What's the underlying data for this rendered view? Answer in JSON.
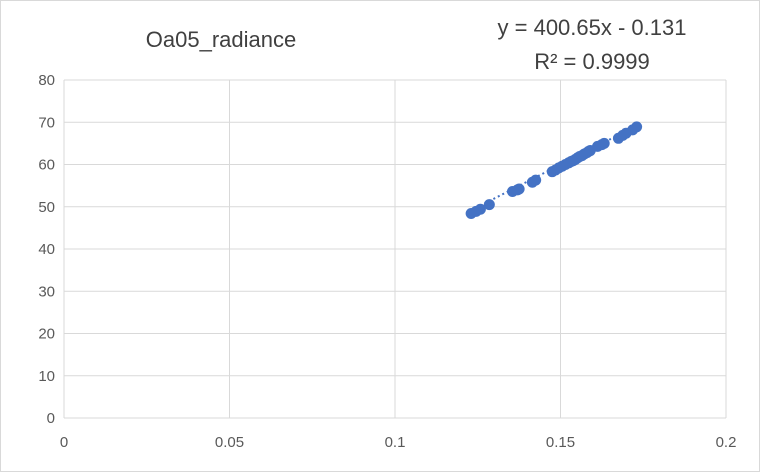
{
  "chart_data": {
    "type": "scatter",
    "title": "Oa05_radiance",
    "xlabel": "",
    "ylabel": "",
    "xlim": [
      0,
      0.2
    ],
    "ylim": [
      0,
      80
    ],
    "x_ticks": [
      0,
      0.05,
      0.1,
      0.15,
      0.2
    ],
    "x_tick_labels": [
      "0",
      "0.05",
      "0.1",
      "0.15",
      "0.2"
    ],
    "y_ticks": [
      0,
      10,
      20,
      30,
      40,
      50,
      60,
      70,
      80
    ],
    "y_tick_labels": [
      "0",
      "10",
      "20",
      "30",
      "40",
      "50",
      "60",
      "70",
      "80"
    ],
    "grid": true,
    "legend": "none",
    "marker_color": "#4472c4",
    "trendline": {
      "type": "linear",
      "style": "dotted",
      "slope": 400.65,
      "intercept": -0.131,
      "x_range": [
        0.123,
        0.174
      ],
      "equation_label": "y = 400.65x - 0.131",
      "r2_label": "R² = 0.9999"
    },
    "series": [
      {
        "x": [
          0.123,
          0.1245,
          0.1258,
          0.1285,
          0.1355,
          0.137,
          0.1375,
          0.1415,
          0.1425,
          0.1475,
          0.1485,
          0.1495,
          0.1505,
          0.1515,
          0.1525,
          0.1532,
          0.1538,
          0.1545,
          0.1552,
          0.1558,
          0.1565,
          0.1572,
          0.158,
          0.1585,
          0.159,
          0.1612,
          0.1625,
          0.1632,
          0.1675,
          0.1688,
          0.1698,
          0.1718,
          0.173
        ],
        "y": [
          48.4,
          48.9,
          49.4,
          50.5,
          53.6,
          54.0,
          54.2,
          55.8,
          56.3,
          58.3,
          58.7,
          59.2,
          59.6,
          60.0,
          60.4,
          60.7,
          60.9,
          61.2,
          61.6,
          61.9,
          62.1,
          62.5,
          62.8,
          63.1,
          63.3,
          64.3,
          64.7,
          65.0,
          66.2,
          66.9,
          67.4,
          68.2,
          68.9
        ]
      }
    ]
  }
}
